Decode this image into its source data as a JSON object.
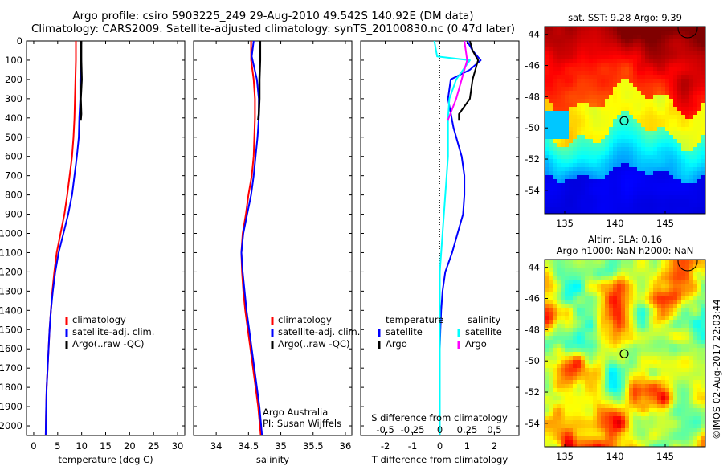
{
  "header": {
    "line1": "Argo profile: csiro 5903225_249 29-Aug-2010 49.542S 140.92E (DM data)",
    "line2": "Climatology: CARS2009. Satellite-adjusted climatology: synTS_20100830.nc (0.47d later)"
  },
  "colors": {
    "red": "#ff0000",
    "blue": "#0000ff",
    "black": "#000000",
    "cyan": "#00ffff",
    "magenta": "#ff00ff"
  },
  "chart_data": [
    {
      "type": "line",
      "name": "temperature",
      "xlabel": "temperature (deg C)",
      "ylabel": "",
      "xlim": [
        -1.5,
        31.5
      ],
      "ylim": [
        2050,
        0
      ],
      "xticks": [
        0,
        5,
        10,
        15,
        20,
        25,
        30
      ],
      "xtick_labels": [
        "0",
        "5",
        "10",
        "15",
        "20",
        "25",
        "30"
      ],
      "yticks": [
        0,
        100,
        200,
        300,
        400,
        500,
        600,
        700,
        800,
        900,
        1000,
        1100,
        1200,
        1300,
        1400,
        1500,
        1600,
        1700,
        1800,
        1900,
        2000
      ],
      "ytick_labels": [
        "0",
        "100",
        "200",
        "300",
        "400",
        "500",
        "600",
        "700",
        "800",
        "900",
        "1000",
        "1100",
        "1200",
        "1300",
        "1400",
        "1500",
        "1600",
        "1700",
        "1800",
        "1900",
        "2000"
      ],
      "legend": [
        {
          "label": "climatology",
          "color": "#ff0000"
        },
        {
          "label": "satellite-adj. clim.",
          "color": "#0000ff"
        },
        {
          "label": "Argo(..raw -QC)",
          "color": "#000000"
        }
      ],
      "series": [
        {
          "name": "climatology",
          "color": "#ff0000",
          "x": [
            8.8,
            8.8,
            8.7,
            8.6,
            8.5,
            8.3,
            8.0,
            7.5,
            7.0,
            6.4,
            5.6,
            4.8,
            4.3,
            3.9,
            3.6,
            3.3,
            3.1,
            2.9,
            2.7,
            2.6,
            2.5
          ],
          "y": [
            0,
            100,
            200,
            300,
            400,
            500,
            600,
            700,
            800,
            900,
            1000,
            1100,
            1200,
            1300,
            1400,
            1500,
            1600,
            1700,
            1800,
            1900,
            2050
          ]
        },
        {
          "name": "satellite-adj. clim.",
          "color": "#0000ff",
          "x": [
            9.8,
            9.9,
            9.7,
            9.7,
            9.5,
            9.4,
            9.0,
            8.5,
            8.0,
            7.2,
            6.2,
            5.2,
            4.5,
            4.0,
            3.6,
            3.3,
            3.1,
            2.9,
            2.7,
            2.6,
            2.5
          ],
          "y": [
            0,
            100,
            200,
            300,
            400,
            500,
            600,
            700,
            800,
            900,
            1000,
            1100,
            1200,
            1300,
            1400,
            1500,
            1600,
            1700,
            1800,
            1900,
            2050
          ]
        },
        {
          "name": "Argo(..raw -QC)",
          "color": "#000000",
          "x": [
            9.9,
            9.9,
            10.0,
            9.8,
            9.9,
            9.8
          ],
          "y": [
            0,
            100,
            200,
            300,
            380,
            410
          ]
        }
      ],
      "annotations": []
    },
    {
      "type": "line",
      "name": "salinity",
      "xlabel": "salinity",
      "ylabel": "",
      "xlim": [
        33.65,
        36.1
      ],
      "ylim": [
        2050,
        0
      ],
      "xticks": [
        34,
        34.5,
        35,
        35.5,
        36
      ],
      "xtick_labels": [
        "34",
        "34.5",
        "35",
        "35.5",
        "36"
      ],
      "legend": [
        {
          "label": "climatology",
          "color": "#ff0000"
        },
        {
          "label": "satellite-adj. clim.",
          "color": "#0000ff"
        },
        {
          "label": "Argo(..raw -QC)",
          "color": "#000000"
        }
      ],
      "annotations": [
        "Argo Australia",
        "PI: Susan Wijffels"
      ],
      "series": [
        {
          "name": "climatology",
          "color": "#ff0000",
          "x": [
            34.54,
            34.54,
            34.58,
            34.6,
            34.6,
            34.59,
            34.58,
            34.55,
            34.5,
            34.46,
            34.41,
            34.39,
            34.4,
            34.42,
            34.45,
            34.49,
            34.53,
            34.57,
            34.61,
            34.65,
            34.69
          ],
          "y": [
            0,
            100,
            200,
            300,
            400,
            500,
            600,
            700,
            800,
            900,
            1000,
            1100,
            1200,
            1300,
            1400,
            1500,
            1600,
            1700,
            1800,
            1900,
            2050
          ]
        },
        {
          "name": "satellite-adj. clim.",
          "color": "#0000ff",
          "x": [
            34.58,
            34.55,
            34.63,
            34.66,
            34.66,
            34.64,
            34.61,
            34.58,
            34.54,
            34.48,
            34.42,
            34.39,
            34.41,
            34.44,
            34.47,
            34.51,
            34.55,
            34.59,
            34.63,
            34.67,
            34.71
          ],
          "y": [
            0,
            80,
            200,
            300,
            400,
            500,
            600,
            700,
            800,
            900,
            1000,
            1100,
            1200,
            1300,
            1400,
            1500,
            1600,
            1700,
            1800,
            1900,
            2050
          ]
        },
        {
          "name": "Argo(..raw -QC)",
          "color": "#000000",
          "x": [
            34.68,
            34.68,
            34.67,
            34.67,
            34.66,
            34.65
          ],
          "y": [
            0,
            100,
            200,
            300,
            380,
            410
          ]
        }
      ]
    },
    {
      "type": "line",
      "name": "differences",
      "xlabel": "T difference from climatology",
      "xlabel2": "S difference from climatology",
      "ylabel": "",
      "xlim": [
        -2.9,
        2.9
      ],
      "ylim": [
        2050,
        0
      ],
      "xticks": [
        -2,
        -1,
        0,
        1,
        2
      ],
      "xtick_labels": [
        "-2",
        "-1",
        "0",
        "1",
        "2"
      ],
      "sticks": [
        -0.5,
        -0.25,
        0,
        0.25,
        0.5
      ],
      "stick_labels": [
        "-0.5",
        "-0.25",
        "0",
        "0.25",
        "0.5"
      ],
      "legend": [
        {
          "label": "temperature",
          "color": ""
        },
        {
          "label": "satellite",
          "color": "#0000ff"
        },
        {
          "label": "Argo",
          "color": "#000000"
        },
        {
          "label": "salinity",
          "color": ""
        },
        {
          "label": "satellite",
          "color": "#00ffff"
        },
        {
          "label": "Argo",
          "color": "#ff00ff"
        }
      ],
      "series": [
        {
          "name": "T satellite",
          "color": "#0000ff",
          "x": [
            1.0,
            1.2,
            1.5,
            1.1,
            0.4,
            0.3,
            0.5,
            0.8,
            0.9,
            0.9,
            0.85,
            0.65,
            0.45,
            0.2,
            0.1,
            0.05,
            0.02,
            0.0,
            0.0,
            0.0,
            0.0,
            0.0
          ],
          "y": [
            0,
            50,
            100,
            150,
            200,
            300,
            450,
            600,
            700,
            800,
            900,
            1000,
            1100,
            1200,
            1300,
            1400,
            1500,
            1600,
            1700,
            1800,
            1900,
            2050
          ]
        },
        {
          "name": "T Argo",
          "color": "#000000",
          "x": [
            1.1,
            1.2,
            1.4,
            1.2,
            1.1,
            0.7,
            0.7
          ],
          "y": [
            0,
            50,
            100,
            200,
            300,
            380,
            410
          ]
        },
        {
          "name": "S satellite",
          "color": "#00ffff",
          "x": [
            -0.2,
            -0.1,
            1.1,
            0.6,
            0.35,
            0.3,
            0.3,
            0.3,
            0.25,
            0.2,
            0.15,
            0.1,
            0.05,
            0.0,
            0.0,
            0.0,
            0.0,
            0.0,
            0.0,
            0.0,
            0.0
          ],
          "y": [
            0,
            80,
            100,
            200,
            300,
            400,
            500,
            600,
            700,
            800,
            900,
            1000,
            1100,
            1200,
            1300,
            1400,
            1500,
            1600,
            1700,
            1800,
            2050
          ]
        },
        {
          "name": "S Argo",
          "color": "#ff00ff",
          "x": [
            0.9,
            1.0,
            0.8,
            0.6,
            0.3
          ],
          "y": [
            0,
            100,
            200,
            300,
            410
          ]
        }
      ]
    },
    {
      "type": "heatmap",
      "name": "sst-map",
      "title": "sat. SST: 9.28 Argo: 9.39",
      "xticks": [
        135,
        140,
        145
      ],
      "xtick_labels": [
        "135",
        "140",
        "145"
      ],
      "yticks": [
        -44,
        -46,
        -48,
        -50,
        -52,
        -54
      ],
      "ytick_labels": [
        "-44",
        "-46",
        "-48",
        "-50",
        "-52",
        "-54"
      ],
      "xlim": [
        133,
        149
      ],
      "ylim": [
        -55.5,
        -43.5
      ],
      "argo_position": [
        140.92,
        -49.54
      ]
    },
    {
      "type": "heatmap",
      "name": "sla-map",
      "title_line1": "Altim. SLA: 0.16",
      "title_line2": "Argo h1000: NaN h2000: NaN",
      "xticks": [
        135,
        140,
        145
      ],
      "xtick_labels": [
        "135",
        "140",
        "145"
      ],
      "yticks": [
        -44,
        -46,
        -48,
        -50,
        -52,
        -54
      ],
      "ytick_labels": [
        "-44",
        "-46",
        "-48",
        "-50",
        "-52",
        "-54"
      ],
      "xlim": [
        133,
        149
      ],
      "ylim": [
        -55.5,
        -43.5
      ],
      "argo_position": [
        140.92,
        -49.54
      ]
    }
  ],
  "credit": "©IMOS 02-Aug-2017 22:03:44"
}
